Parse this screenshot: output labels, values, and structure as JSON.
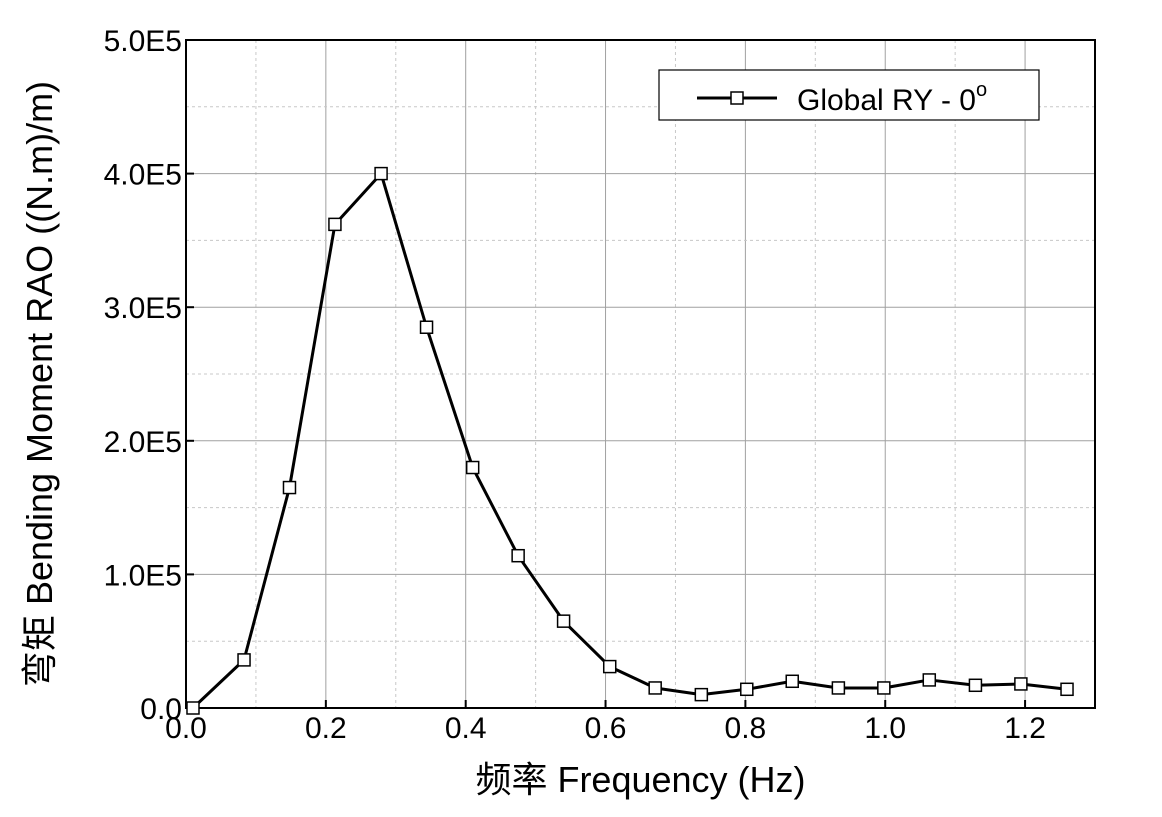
{
  "chart_data": {
    "type": "line",
    "title": "",
    "xlabel": "频率 Frequency (Hz)",
    "ylabel": "弯矩 Bending Moment RAO ((N.m)/m)",
    "xlim": [
      0.0,
      1.3
    ],
    "ylim": [
      0,
      500000
    ],
    "x_ticks": [
      0.0,
      0.2,
      0.4,
      0.6,
      0.8,
      1.0,
      1.2
    ],
    "x_tick_labels": [
      "0.0",
      "0.2",
      "0.4",
      "0.6",
      "0.8",
      "1.0",
      "1.2"
    ],
    "y_ticks": [
      0,
      100000,
      200000,
      300000,
      400000,
      500000
    ],
    "y_tick_labels": [
      "0.0",
      "1.0E5",
      "2.0E5",
      "3.0E5",
      "4.0E5",
      "5.0E5"
    ],
    "grid": true,
    "legend_position": "top-right",
    "series": [
      {
        "name": "Global RY - 0",
        "name_superscript": "o",
        "color": "#000000",
        "marker": "open-square",
        "x": [
          0.01,
          0.083,
          0.148,
          0.213,
          0.279,
          0.344,
          0.41,
          0.475,
          0.54,
          0.606,
          0.671,
          0.737,
          0.802,
          0.867,
          0.933,
          0.998,
          1.063,
          1.129,
          1.194,
          1.26
        ],
        "y": [
          0,
          36000,
          165000,
          362000,
          400000,
          285000,
          180000,
          114000,
          65000,
          31000,
          15000,
          10000,
          14000,
          20000,
          15000,
          15000,
          21000,
          17000,
          18000,
          14000
        ]
      }
    ]
  }
}
